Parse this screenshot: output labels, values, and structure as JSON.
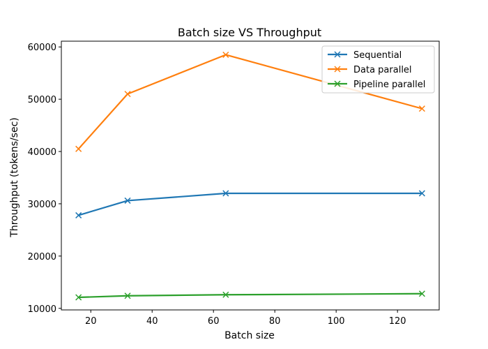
{
  "chart_data": {
    "type": "line",
    "title": "Batch size VS Throughput",
    "xlabel": "Batch size",
    "ylabel": "Throughput (tokens/sec)",
    "xlim": [
      10.4,
      133.6
    ],
    "ylim": [
      9700,
      61100
    ],
    "xticks": [
      20,
      40,
      60,
      80,
      100,
      120
    ],
    "yticks": [
      10000,
      20000,
      30000,
      40000,
      50000,
      60000
    ],
    "grid": false,
    "legend_position": "top-right",
    "x": [
      16,
      32,
      64,
      128
    ],
    "series": [
      {
        "name": "Sequential",
        "color": "#1f77b4",
        "marker": "x",
        "values": [
          27800,
          30600,
          32000,
          32000
        ]
      },
      {
        "name": "Data parallel",
        "color": "#ff7f0e",
        "marker": "x",
        "values": [
          40500,
          51000,
          58500,
          48200
        ]
      },
      {
        "name": "Pipeline parallel",
        "color": "#2ca02c",
        "marker": "x",
        "values": [
          12100,
          12400,
          12600,
          12800
        ]
      }
    ]
  }
}
